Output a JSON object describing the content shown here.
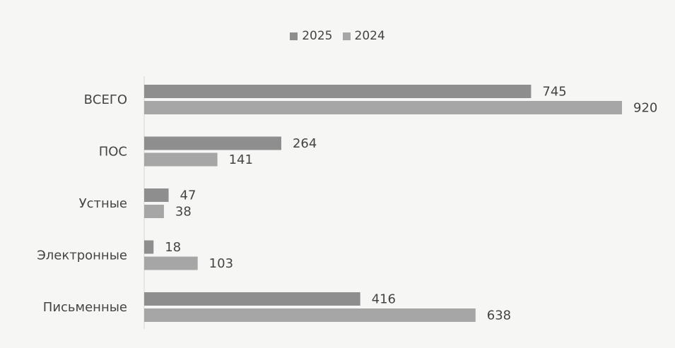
{
  "chart_data": {
    "type": "bar",
    "orientation": "horizontal",
    "categories": [
      "ВСЕГО",
      "ПОС",
      "Устные",
      "Электронные",
      "Письменные"
    ],
    "series": [
      {
        "name": "2025",
        "values": [
          745,
          264,
          47,
          18,
          416
        ],
        "color": "#8e8e8e"
      },
      {
        "name": "2024",
        "values": [
          920,
          141,
          38,
          103,
          638
        ],
        "color": "#a6a6a6"
      }
    ],
    "xlim": [
      0,
      920
    ],
    "legend_position": "top-center",
    "data_labels": true,
    "grid": false
  }
}
